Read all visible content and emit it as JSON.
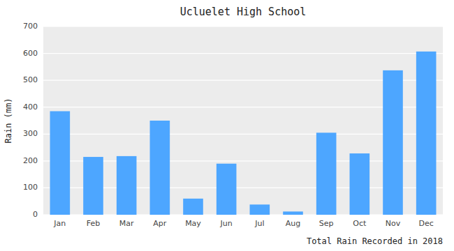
{
  "chart_data": {
    "type": "bar",
    "title": "Ucluelet High School",
    "xlabel": "Total Rain Recorded in 2018",
    "ylabel": "Rain (mm)",
    "categories": [
      "Jan",
      "Feb",
      "Mar",
      "Apr",
      "May",
      "Jun",
      "Jul",
      "Aug",
      "Sep",
      "Oct",
      "Nov",
      "Dec"
    ],
    "values": [
      385,
      215,
      218,
      350,
      60,
      190,
      38,
      12,
      305,
      228,
      537,
      607
    ],
    "color": "#4da6ff",
    "ylim": [
      0,
      700
    ],
    "yticks": [
      0,
      100,
      200,
      300,
      400,
      500,
      600,
      700
    ],
    "grid": true
  }
}
